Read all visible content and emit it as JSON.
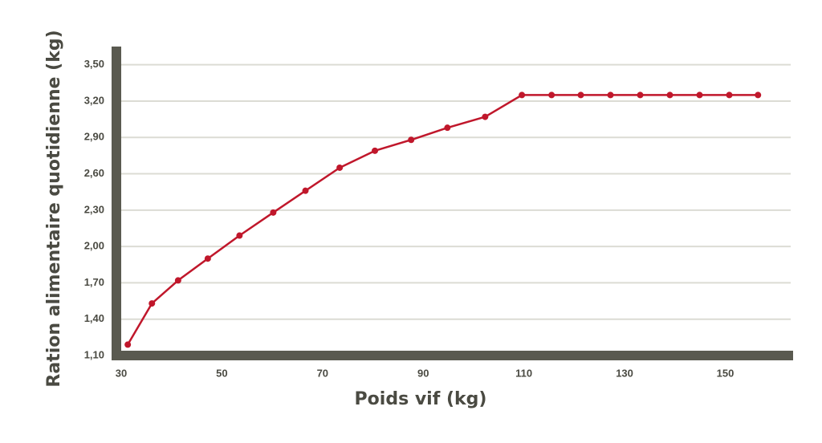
{
  "chart_data": {
    "type": "line",
    "x_label": "Poids vif (kg)",
    "y_label": "Ration alimentaire quotidienne (kg)",
    "x": [
      31.3,
      36.1,
      41.3,
      47.2,
      53.5,
      60.2,
      66.6,
      73.4,
      80.4,
      87.6,
      94.8,
      102.3,
      109.6,
      115.5,
      121.3,
      127.2,
      133.1,
      139,
      144.9,
      150.8,
      156.5
    ],
    "series": [
      {
        "color": "#c0172b",
        "values": [
          1.19,
          1.53,
          1.72,
          1.9,
          2.09,
          2.28,
          2.46,
          2.65,
          2.79,
          2.88,
          2.98,
          3.07,
          3.25,
          3.25,
          3.25,
          3.25,
          3.25,
          3.25,
          3.25,
          3.25,
          3.25
        ]
      }
    ],
    "xlim": [
      30,
      163
    ],
    "ylim": [
      1.1,
      3.65
    ],
    "xticks": [
      30,
      50,
      70,
      90,
      110,
      130,
      150
    ],
    "yticks": [
      {
        "value": 1.1,
        "label": "1,10"
      },
      {
        "value": 1.4,
        "label": "1,40"
      },
      {
        "value": 1.7,
        "label": "1,70"
      },
      {
        "value": 2.0,
        "label": "2,00"
      },
      {
        "value": 2.3,
        "label": "2,30"
      },
      {
        "value": 2.6,
        "label": "2,60"
      },
      {
        "value": 2.9,
        "label": "2,90"
      },
      {
        "value": 3.2,
        "label": "3,20"
      },
      {
        "value": 3.5,
        "label": "3,50"
      }
    ],
    "grid": true,
    "axis_color": "#5a5a50"
  }
}
